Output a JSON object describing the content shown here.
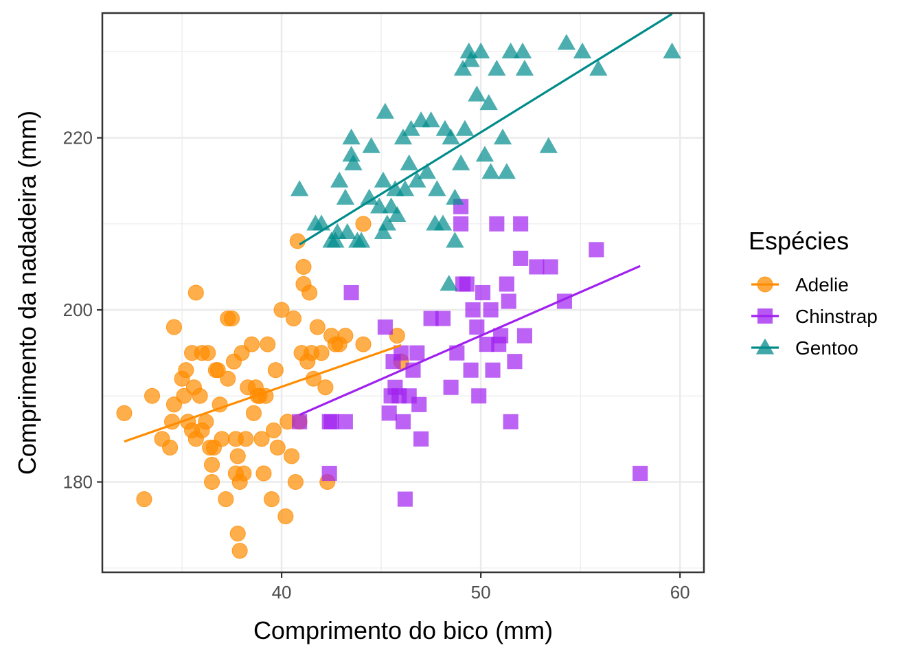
{
  "chart_data": {
    "type": "scatter",
    "title": "",
    "xlabel": "Comprimento do bico (mm)",
    "ylabel": "Comprimento da nadadeira (mm)",
    "xlim": [
      31,
      61.2
    ],
    "ylim": [
      169.5,
      234.5
    ],
    "x_ticks": [
      40,
      50,
      60
    ],
    "y_ticks": [
      180,
      200,
      220
    ],
    "x_minor_ticks": [
      35,
      45,
      55
    ],
    "y_minor_ticks": [
      170,
      190,
      210,
      230
    ],
    "grid": true,
    "theme": "bw",
    "legend": {
      "title": "Espécies",
      "position": "right"
    },
    "series": [
      {
        "name": "Adelie",
        "color": "#FF8C00",
        "marker": "circle",
        "trend": {
          "x": [
            32.1,
            46.0
          ],
          "y": [
            184.7,
            195.9
          ]
        },
        "points": [
          [
            32.1,
            188
          ],
          [
            33.1,
            178
          ],
          [
            33.5,
            190
          ],
          [
            34.0,
            185
          ],
          [
            34.4,
            184
          ],
          [
            34.5,
            187
          ],
          [
            34.6,
            189
          ],
          [
            34.6,
            198
          ],
          [
            35.0,
            192
          ],
          [
            35.1,
            190
          ],
          [
            35.2,
            193
          ],
          [
            35.3,
            187
          ],
          [
            35.5,
            195
          ],
          [
            35.5,
            186
          ],
          [
            35.6,
            191
          ],
          [
            35.7,
            185
          ],
          [
            35.7,
            202
          ],
          [
            35.9,
            190
          ],
          [
            36.0,
            195
          ],
          [
            36.0,
            186
          ],
          [
            36.2,
            187
          ],
          [
            36.3,
            195
          ],
          [
            36.4,
            184
          ],
          [
            36.5,
            182
          ],
          [
            36.5,
            180
          ],
          [
            36.6,
            184
          ],
          [
            36.7,
            193
          ],
          [
            36.8,
            193
          ],
          [
            36.9,
            189
          ],
          [
            37.0,
            185
          ],
          [
            37.2,
            178
          ],
          [
            37.3,
            199
          ],
          [
            37.3,
            192
          ],
          [
            37.5,
            199
          ],
          [
            37.6,
            194
          ],
          [
            37.7,
            185
          ],
          [
            37.7,
            181
          ],
          [
            37.8,
            174
          ],
          [
            37.8,
            183
          ],
          [
            37.9,
            172
          ],
          [
            37.9,
            180
          ],
          [
            38.0,
            195
          ],
          [
            38.1,
            181
          ],
          [
            38.2,
            185
          ],
          [
            38.3,
            191
          ],
          [
            38.5,
            196
          ],
          [
            38.6,
            188
          ],
          [
            38.7,
            191
          ],
          [
            38.8,
            190
          ],
          [
            38.9,
            190
          ],
          [
            39.0,
            185
          ],
          [
            39.1,
            181
          ],
          [
            39.2,
            190
          ],
          [
            39.3,
            196
          ],
          [
            39.5,
            178
          ],
          [
            39.6,
            186
          ],
          [
            39.7,
            193
          ],
          [
            39.8,
            184
          ],
          [
            40.0,
            200
          ],
          [
            40.2,
            176
          ],
          [
            40.3,
            187
          ],
          [
            40.5,
            183
          ],
          [
            40.6,
            199
          ],
          [
            40.7,
            180
          ],
          [
            40.8,
            208
          ],
          [
            40.9,
            187
          ],
          [
            41.0,
            195
          ],
          [
            41.1,
            203
          ],
          [
            41.1,
            205
          ],
          [
            41.3,
            194
          ],
          [
            41.4,
            202
          ],
          [
            41.5,
            195
          ],
          [
            41.6,
            192
          ],
          [
            41.8,
            198
          ],
          [
            42.0,
            195
          ],
          [
            42.2,
            191
          ],
          [
            42.3,
            180
          ],
          [
            42.5,
            197
          ],
          [
            42.7,
            196
          ],
          [
            42.9,
            196
          ],
          [
            43.2,
            197
          ],
          [
            44.1,
            210
          ],
          [
            44.1,
            196
          ],
          [
            45.8,
            197
          ],
          [
            46.0,
            194
          ]
        ]
      },
      {
        "name": "Chinstrap",
        "color": "#A020F0",
        "marker": "square",
        "trend": {
          "x": [
            40.9,
            58.0
          ],
          "y": [
            187.8,
            205.1
          ]
        },
        "points": [
          [
            40.9,
            187
          ],
          [
            42.4,
            187
          ],
          [
            42.4,
            181
          ],
          [
            42.5,
            187
          ],
          [
            43.2,
            187
          ],
          [
            43.5,
            202
          ],
          [
            45.2,
            198
          ],
          [
            45.4,
            188
          ],
          [
            45.5,
            190
          ],
          [
            45.6,
            194
          ],
          [
            45.7,
            191
          ],
          [
            45.9,
            190
          ],
          [
            46.0,
            195
          ],
          [
            46.1,
            187
          ],
          [
            46.2,
            178
          ],
          [
            46.4,
            190
          ],
          [
            46.6,
            193
          ],
          [
            46.8,
            195
          ],
          [
            46.9,
            189
          ],
          [
            47.0,
            185
          ],
          [
            47.5,
            199
          ],
          [
            48.1,
            199
          ],
          [
            48.5,
            191
          ],
          [
            48.8,
            195
          ],
          [
            49.0,
            212
          ],
          [
            49.0,
            210
          ],
          [
            49.1,
            203
          ],
          [
            49.3,
            203
          ],
          [
            49.5,
            193
          ],
          [
            49.6,
            200
          ],
          [
            49.8,
            198
          ],
          [
            49.9,
            190
          ],
          [
            50.1,
            202
          ],
          [
            50.3,
            196
          ],
          [
            50.5,
            200
          ],
          [
            50.6,
            193
          ],
          [
            50.8,
            210
          ],
          [
            50.9,
            196
          ],
          [
            51.0,
            197
          ],
          [
            51.3,
            203
          ],
          [
            51.4,
            201
          ],
          [
            51.5,
            187
          ],
          [
            51.7,
            194
          ],
          [
            52.0,
            206
          ],
          [
            52.0,
            210
          ],
          [
            52.2,
            197
          ],
          [
            52.8,
            205
          ],
          [
            53.5,
            205
          ],
          [
            54.2,
            201
          ],
          [
            55.8,
            207
          ],
          [
            58.0,
            181
          ]
        ]
      },
      {
        "name": "Gentoo",
        "color": "#008B8B",
        "marker": "triangle",
        "trend": {
          "x": [
            40.9,
            59.6
          ],
          "y": [
            207.6,
            234.4
          ]
        },
        "points": [
          [
            40.9,
            214
          ],
          [
            41.7,
            210
          ],
          [
            42.0,
            210
          ],
          [
            42.5,
            208
          ],
          [
            42.7,
            208
          ],
          [
            42.8,
            209
          ],
          [
            42.9,
            215
          ],
          [
            43.2,
            213
          ],
          [
            43.3,
            209
          ],
          [
            43.5,
            220
          ],
          [
            43.5,
            218
          ],
          [
            43.6,
            217
          ],
          [
            43.8,
            208
          ],
          [
            44.0,
            208
          ],
          [
            44.4,
            213
          ],
          [
            44.5,
            219
          ],
          [
            44.9,
            212
          ],
          [
            45.1,
            209
          ],
          [
            45.1,
            215
          ],
          [
            45.2,
            223
          ],
          [
            45.3,
            210
          ],
          [
            45.5,
            212
          ],
          [
            45.7,
            214
          ],
          [
            45.8,
            211
          ],
          [
            46.1,
            220
          ],
          [
            46.2,
            214
          ],
          [
            46.4,
            217
          ],
          [
            46.5,
            221
          ],
          [
            46.8,
            215
          ],
          [
            47.0,
            222
          ],
          [
            47.3,
            216
          ],
          [
            47.5,
            222
          ],
          [
            47.7,
            210
          ],
          [
            47.8,
            214
          ],
          [
            48.1,
            210
          ],
          [
            48.2,
            221
          ],
          [
            48.4,
            203
          ],
          [
            48.5,
            220
          ],
          [
            48.7,
            213
          ],
          [
            48.7,
            208
          ],
          [
            49.0,
            217
          ],
          [
            49.1,
            228
          ],
          [
            49.2,
            221
          ],
          [
            49.4,
            230
          ],
          [
            49.5,
            229
          ],
          [
            49.8,
            225
          ],
          [
            50.0,
            230
          ],
          [
            50.2,
            218
          ],
          [
            50.4,
            224
          ],
          [
            50.5,
            216
          ],
          [
            50.8,
            228
          ],
          [
            51.1,
            220
          ],
          [
            51.3,
            216
          ],
          [
            51.5,
            230
          ],
          [
            52.1,
            230
          ],
          [
            52.2,
            228
          ],
          [
            53.4,
            219
          ],
          [
            54.3,
            231
          ],
          [
            55.1,
            230
          ],
          [
            55.9,
            228
          ],
          [
            59.6,
            230
          ]
        ]
      }
    ]
  }
}
